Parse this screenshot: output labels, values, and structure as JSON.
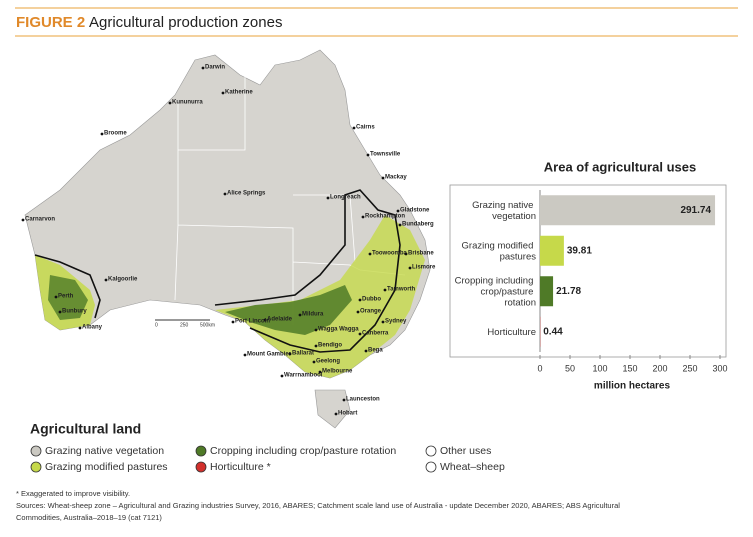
{
  "figure": {
    "label": "FIGURE 2",
    "title": "Agricultural production zones"
  },
  "map": {
    "cities": [
      "Darwin",
      "Katherine",
      "Kununurra",
      "Broome",
      "Cairns",
      "Townsville",
      "Mackay",
      "Alice Springs",
      "Longreach",
      "Rockhampton",
      "Gladstone",
      "Bundaberg",
      "Carnarvon",
      "Toowoomba",
      "Brisbane",
      "Lismore",
      "Kalgoorlie",
      "Tamworth",
      "Dubbo",
      "Orange",
      "Sydney",
      "Perth",
      "Bunbury",
      "Albany",
      "Canberra",
      "Mildura",
      "Wagga Wagga",
      "Adelaide",
      "Port Lincoln",
      "Bendigo",
      "Bega",
      "Mount Gambier",
      "Ballarat",
      "Geelong",
      "Warrnambool",
      "Melbourne",
      "Launceston",
      "Hobart"
    ],
    "scale": [
      "0",
      "250",
      "500km"
    ]
  },
  "legend": {
    "title": "Agricultural land",
    "items": [
      "Grazing native vegetation",
      "Grazing modified pastures",
      "Cropping including crop/pasture rotation",
      "Horticulture *",
      "Other uses",
      "Wheat–sheep"
    ]
  },
  "notes": [
    "* Exaggerated to improve visibility.",
    "Sources: Wheat-sheep zone – Agricultural and Grazing industries Survey, 2016, ABARES; Catchment scale land use of Australia - update December 2020, ABARES; ABS Agricultural",
    "Commodities, Australia–2018–19 (cat 7121)"
  ],
  "chart_data": {
    "type": "hbar",
    "title": "Area of agricultural uses",
    "categories": [
      "Grazing native vegetation",
      "Grazing modified pastures",
      "Cropping including crop/pasture rotation",
      "Horticulture"
    ],
    "values": [
      291.74,
      39.81,
      21.78,
      0.44
    ],
    "colors": [
      "#cbc9c2",
      "#c6d94a",
      "#4f7a27",
      "#d2302c"
    ],
    "xlim": [
      0,
      300
    ],
    "xticks": [
      0,
      50,
      100,
      150,
      200,
      250,
      300
    ],
    "xlabel": "million hectares"
  }
}
